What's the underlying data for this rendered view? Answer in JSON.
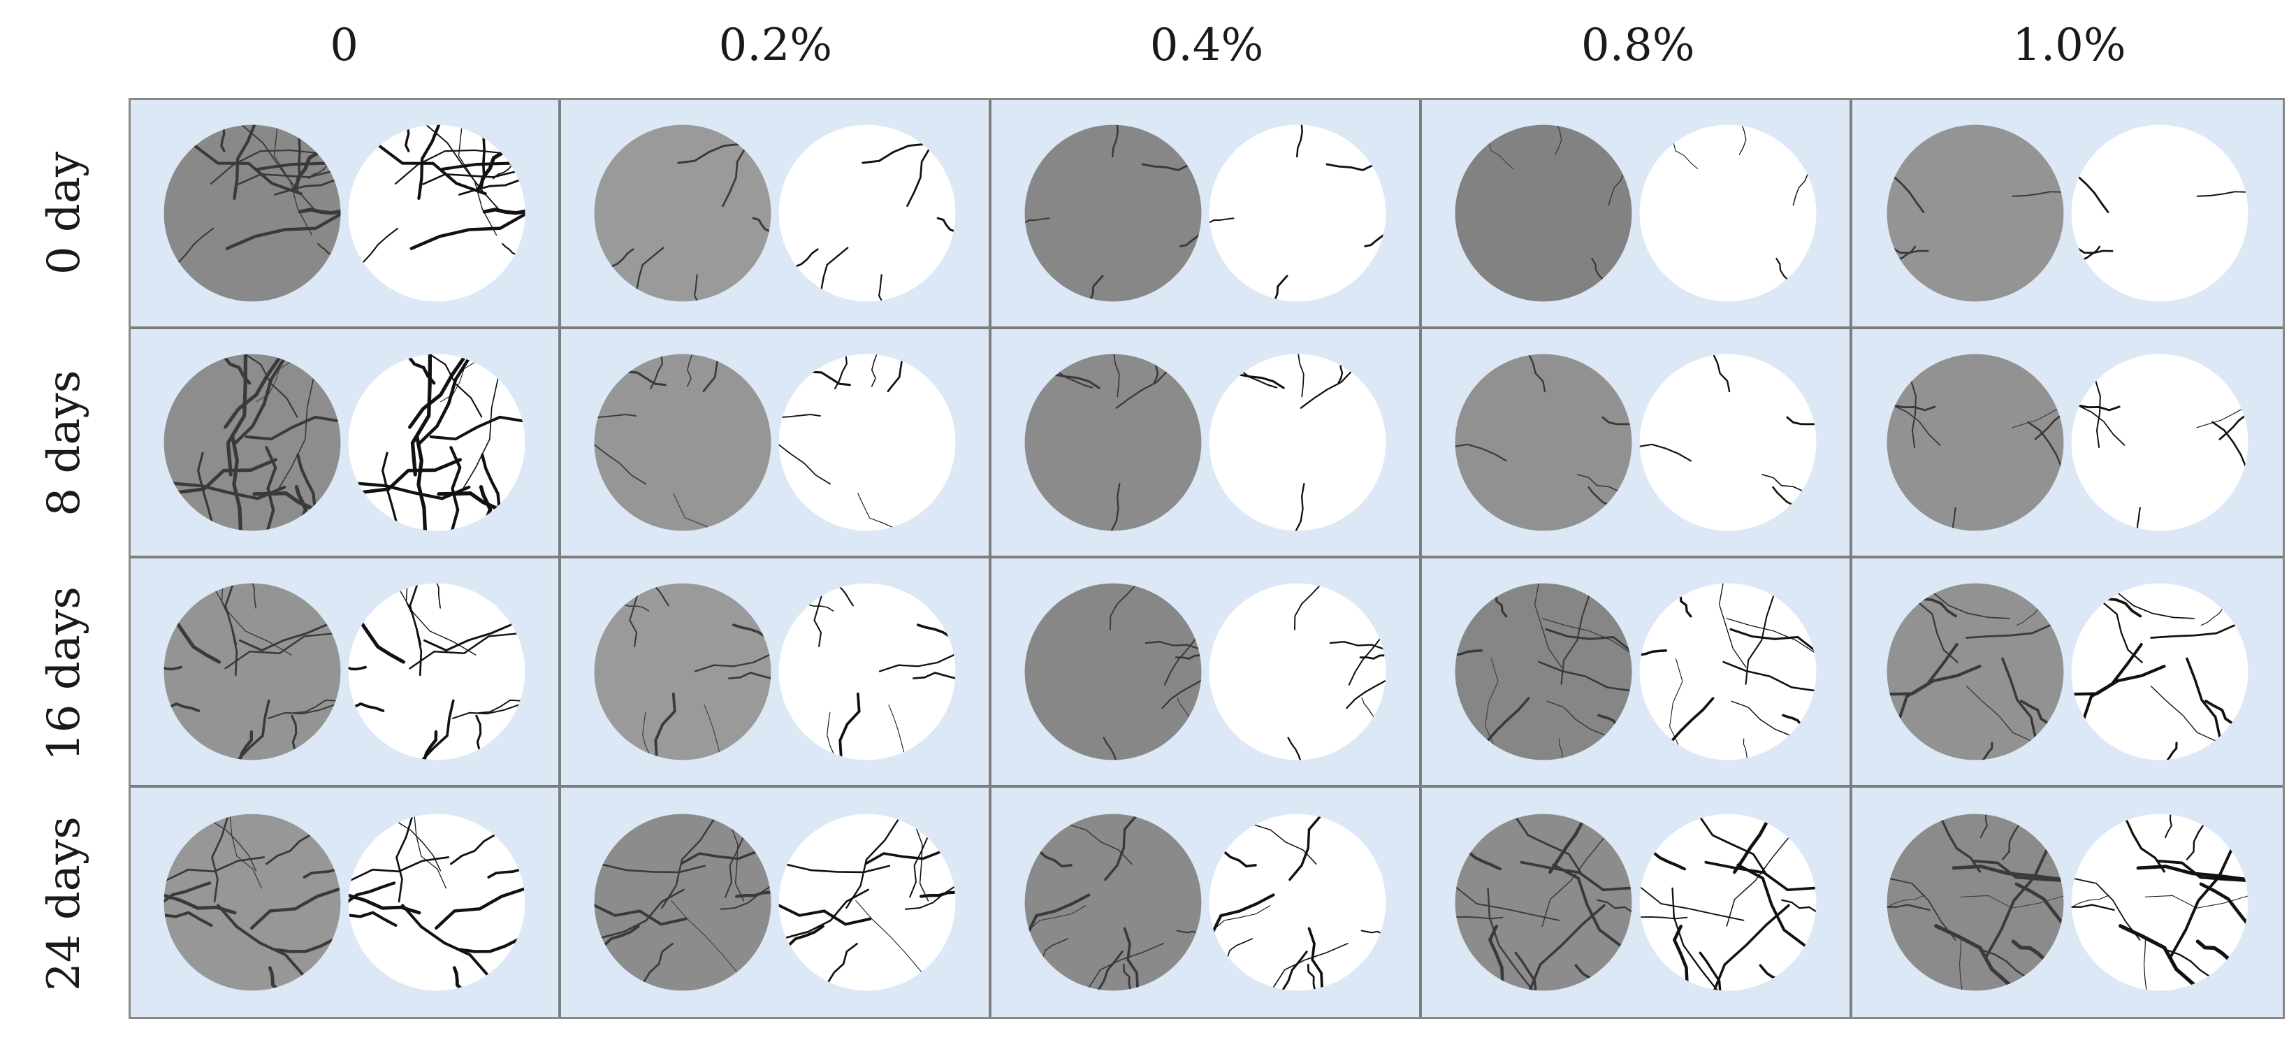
{
  "columns": [
    "0",
    "0.2%",
    "0.4%",
    "0.8%",
    "1.0%"
  ],
  "rows": [
    "0 day",
    "8 days",
    "16 days",
    "24 days"
  ],
  "colors": {
    "cell_background": "#dce8f5",
    "grid_lines": "#7d7d7d",
    "specimen_gray": "#8f8f8f",
    "crack_map_background": "#ffffff"
  },
  "crack_intensity": [
    [
      1.0,
      0.2,
      0.15,
      0.05,
      0.1
    ],
    [
      1.0,
      0.3,
      0.25,
      0.15,
      0.3
    ],
    [
      0.85,
      0.45,
      0.3,
      0.7,
      0.6
    ],
    [
      0.8,
      0.7,
      0.6,
      0.85,
      0.95
    ]
  ]
}
